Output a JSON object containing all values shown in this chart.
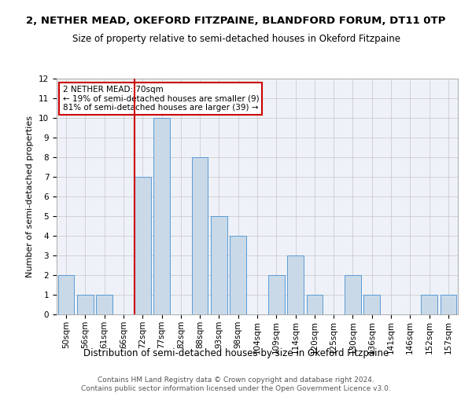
{
  "title1": "2, NETHER MEAD, OKEFORD FITZPAINE, BLANDFORD FORUM, DT11 0TP",
  "title2": "Size of property relative to semi-detached houses in Okeford Fitzpaine",
  "xlabel": "Distribution of semi-detached houses by size in Okeford Fitzpaine",
  "ylabel": "Number of semi-detached properties",
  "categories": [
    "50sqm",
    "56sqm",
    "61sqm",
    "66sqm",
    "72sqm",
    "77sqm",
    "82sqm",
    "88sqm",
    "93sqm",
    "98sqm",
    "104sqm",
    "109sqm",
    "114sqm",
    "120sqm",
    "125sqm",
    "130sqm",
    "136sqm",
    "141sqm",
    "146sqm",
    "152sqm",
    "157sqm"
  ],
  "values": [
    2,
    1,
    1,
    0,
    7,
    10,
    0,
    8,
    5,
    4,
    0,
    2,
    3,
    1,
    0,
    2,
    1,
    0,
    0,
    1,
    1
  ],
  "bar_color": "#c9d9e8",
  "bar_edge_color": "#5b9bd5",
  "highlight_index": 4,
  "highlight_line_color": "#cc0000",
  "annotation_text": "2 NETHER MEAD: 70sqm\n← 19% of semi-detached houses are smaller (9)\n81% of semi-detached houses are larger (39) →",
  "annotation_box_color": "#ffffff",
  "annotation_box_edge_color": "#cc0000",
  "ylim": [
    0,
    12
  ],
  "yticks": [
    0,
    1,
    2,
    3,
    4,
    5,
    6,
    7,
    8,
    9,
    10,
    11,
    12
  ],
  "grid_color": "#cccccc",
  "background_color": "#eef2f8",
  "footer1": "Contains HM Land Registry data © Crown copyright and database right 2024.",
  "footer2": "Contains public sector information licensed under the Open Government Licence v3.0.",
  "title1_fontsize": 9.5,
  "title2_fontsize": 8.5,
  "xlabel_fontsize": 8.5,
  "ylabel_fontsize": 8,
  "tick_fontsize": 7.5,
  "footer_fontsize": 6.5,
  "ann_fontsize": 7.5
}
